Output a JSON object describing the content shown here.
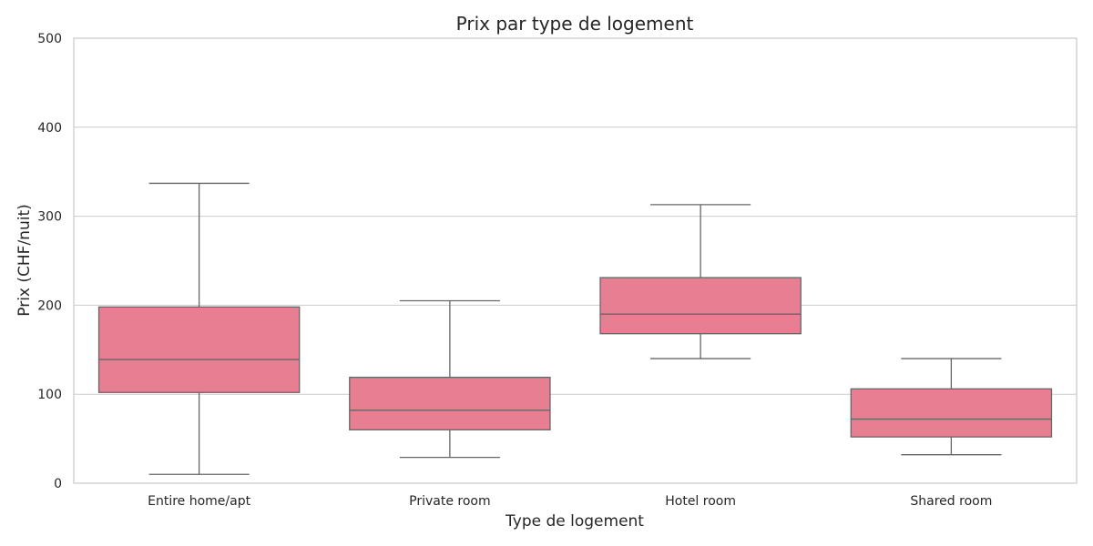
{
  "chart_data": {
    "type": "box",
    "title": "Prix par type de logement",
    "xlabel": "Type de logement",
    "ylabel": "Prix (CHF/nuit)",
    "ylim": [
      0,
      500
    ],
    "yticks": [
      0,
      100,
      200,
      300,
      400,
      500
    ],
    "grid": "horizontal",
    "box_color": "#e87e91",
    "categories": [
      "Entire home/apt",
      "Private room",
      "Hotel room",
      "Shared room"
    ],
    "boxes": [
      {
        "category": "Entire home/apt",
        "whisker_low": 10,
        "q1": 102,
        "median": 139,
        "q3": 198,
        "whisker_high": 337
      },
      {
        "category": "Private room",
        "whisker_low": 29,
        "q1": 60,
        "median": 82,
        "q3": 119,
        "whisker_high": 205
      },
      {
        "category": "Hotel room",
        "whisker_low": 140,
        "q1": 168,
        "median": 190,
        "q3": 231,
        "whisker_high": 313
      },
      {
        "category": "Shared room",
        "whisker_low": 32,
        "q1": 52,
        "median": 72,
        "q3": 106,
        "whisker_high": 140
      }
    ]
  }
}
